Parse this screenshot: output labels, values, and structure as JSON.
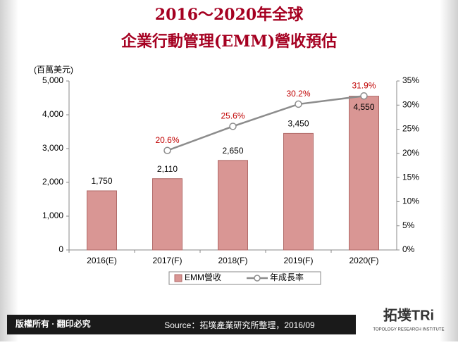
{
  "chart_data": {
    "type": "bar_line",
    "title": [
      "2016～2020年全球",
      "企業行動管理(EMM)營收預估"
    ],
    "y_label": "(百萬美元)",
    "categories": [
      "2016(E)",
      "2017(F)",
      "2018(F)",
      "2019(F)",
      "2020(F)"
    ],
    "series": [
      {
        "name": "EMM營收",
        "color": "#d99694",
        "type": "bar",
        "values": [
          1750,
          2110,
          2650,
          3450,
          4550
        ],
        "value_labels": [
          "1,750",
          "2,110",
          "2,650",
          "3,450",
          "4,550"
        ]
      },
      {
        "name": "年成長率",
        "color": "#8c8c8c",
        "type": "line",
        "axis": "y2",
        "values": [
          null,
          20.6,
          25.6,
          30.2,
          31.9
        ],
        "value_labels": [
          null,
          "20.6%",
          "25.6%",
          "30.2%",
          "31.9%"
        ],
        "label_color": "#c00000"
      }
    ],
    "ylim": [
      0,
      5000
    ],
    "yticks": [
      0,
      {
        "value": 1000,
        "label": "1,000"
      },
      {
        "value": 2000,
        "label": "2,000"
      },
      {
        "value": 3000,
        "label": "3,000"
      },
      {
        "value": 4000,
        "label": "4,000"
      },
      {
        "value": 5000,
        "label": "5,000"
      }
    ],
    "y2lim": [
      0,
      35
    ],
    "y2ticks": [
      {
        "value": 0,
        "label": "0%"
      },
      {
        "value": 5,
        "label": "5%"
      },
      {
        "value": 10,
        "label": "10%"
      },
      {
        "value": 15,
        "label": "15%"
      },
      {
        "value": 20,
        "label": "20%"
      },
      {
        "value": 25,
        "label": "25%"
      },
      {
        "value": 30,
        "label": "30%"
      },
      {
        "value": 35,
        "label": "35%"
      }
    ],
    "legend": "bottom",
    "footer": {
      "copyright": "版權所有 · 翻印必究",
      "source": "Source：拓墣產業研究所整理，2016/09",
      "logo": "拓墣TRi",
      "logo_sub": "TOPOLOGY RESEARCH INSTITUTE"
    }
  }
}
